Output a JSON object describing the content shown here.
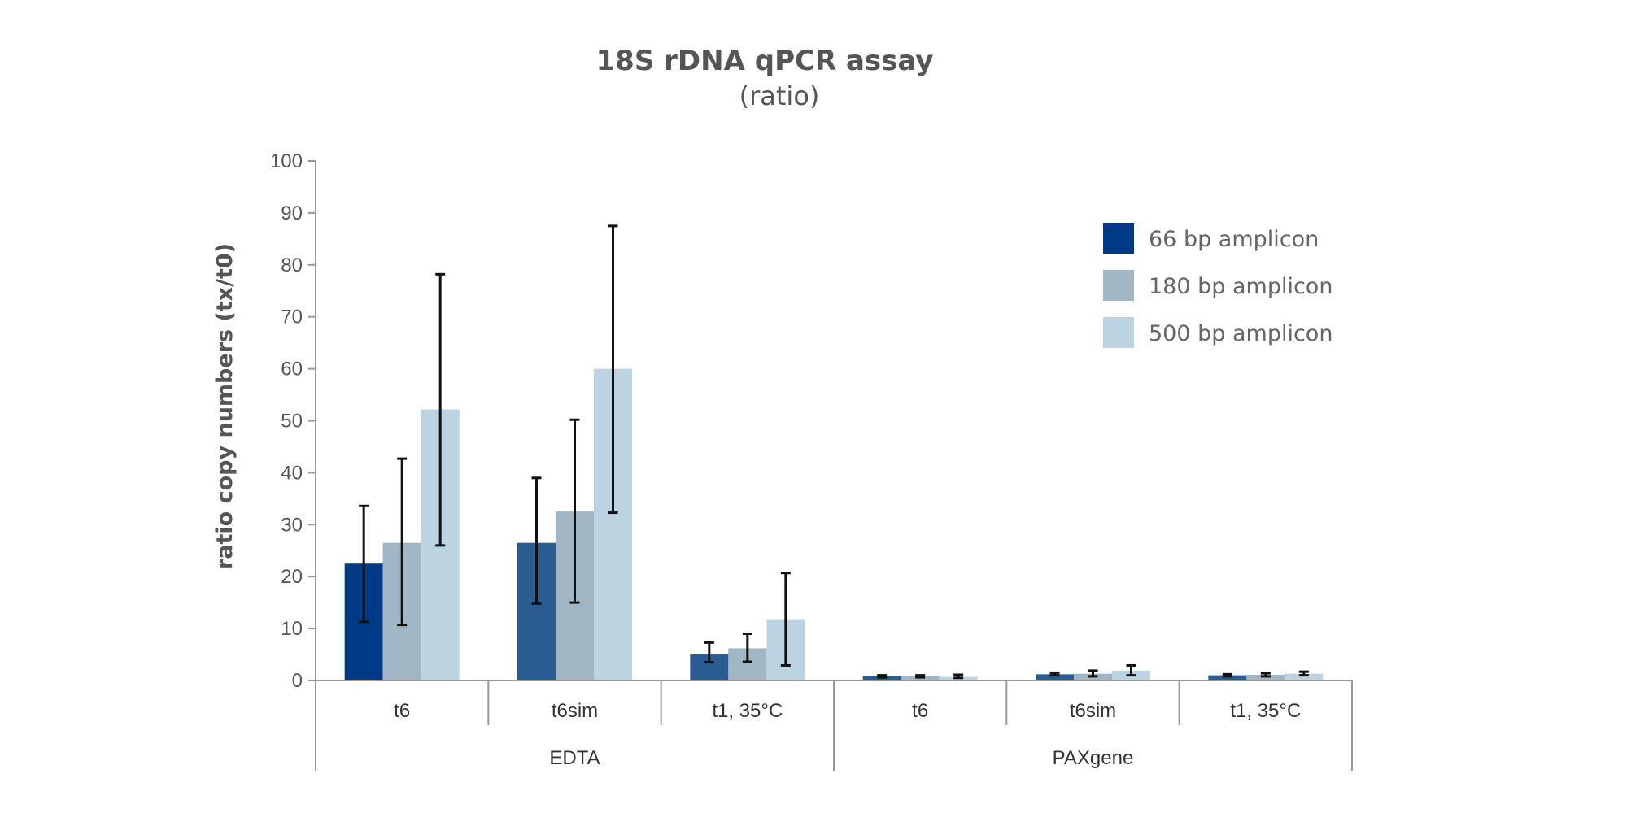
{
  "chart_data": {
    "type": "bar",
    "title": "18S rDNA qPCR assay",
    "subtitle": "(ratio)",
    "ylabel": "ratio copy numbers (tx/t0)",
    "xlabel": "",
    "ylim": [
      0,
      100
    ],
    "yticks": [
      0,
      10,
      20,
      30,
      40,
      50,
      60,
      70,
      80,
      90,
      100
    ],
    "grid": false,
    "legend_position": "top-right",
    "groups": [
      {
        "name": "EDTA",
        "categories": [
          "t6",
          "t6sim",
          "t1, 35°C"
        ]
      },
      {
        "name": "PAXgene",
        "categories": [
          "t6",
          "t6sim",
          "t1, 35°C"
        ]
      }
    ],
    "categories": [
      "t6",
      "t6sim",
      "t1, 35°C",
      "t6",
      "t6sim",
      "t1, 35°C"
    ],
    "series": [
      {
        "name": "66 bp amplicon",
        "values": [
          22.5,
          26.5,
          5.0,
          0.8,
          1.2,
          1.0
        ],
        "error_low": [
          11.3,
          14.8,
          3.5,
          0.6,
          1.0,
          0.8
        ],
        "error_high": [
          33.6,
          39.0,
          7.3,
          1.0,
          1.5,
          1.2
        ]
      },
      {
        "name": "180 bp amplicon",
        "values": [
          26.5,
          32.6,
          6.2,
          0.8,
          1.3,
          1.1
        ],
        "error_low": [
          10.7,
          15.0,
          3.6,
          0.6,
          0.8,
          0.8
        ],
        "error_high": [
          42.7,
          50.2,
          9.0,
          1.0,
          1.9,
          1.4
        ]
      },
      {
        "name": "500 bp amplicon",
        "values": [
          52.2,
          60.0,
          11.8,
          0.7,
          1.9,
          1.3
        ],
        "error_low": [
          26.0,
          32.3,
          2.9,
          0.5,
          1.0,
          1.0
        ],
        "error_high": [
          78.2,
          87.5,
          20.7,
          1.1,
          2.9,
          1.7
        ]
      }
    ],
    "colors": {
      "66 bp amplicon": [
        "#003a87",
        "#2b5c91",
        "#2b5c91",
        "#2b5c91",
        "#2b5c91",
        "#2b5c91"
      ],
      "180 bp amplicon": "#a1b6c5",
      "500 bp amplicon": "#bcd4e2",
      "error_bar": "#111111",
      "axis": "#999999"
    }
  }
}
